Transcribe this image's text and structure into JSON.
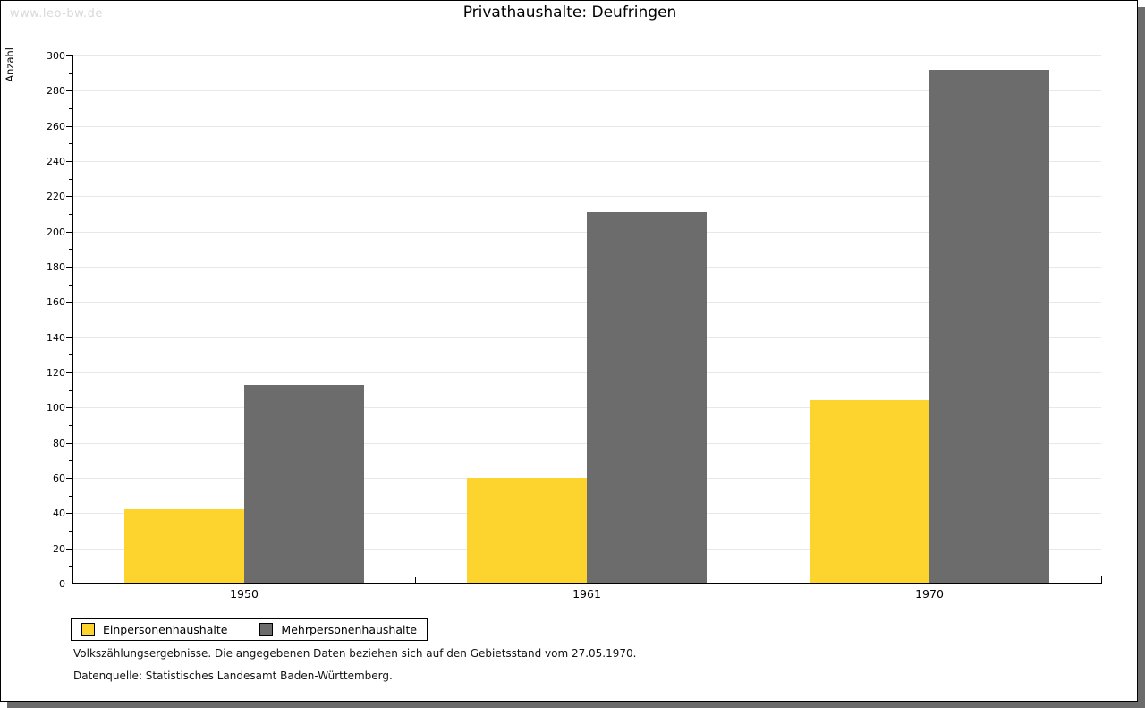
{
  "watermark": "www.leo-bw.de",
  "title": "Privathaushalte: Deufringen",
  "chart_data": {
    "type": "bar",
    "title": "Privathaushalte: Deufringen",
    "categories": [
      "1950",
      "1961",
      "1970"
    ],
    "series": [
      {
        "name": "Einpersonenhaushalte",
        "color": "#fcd42d",
        "values": [
          42,
          60,
          104
        ]
      },
      {
        "name": "Mehrpersonenhaushalte",
        "color": "#6c6c6c",
        "values": [
          113,
          211,
          292
        ]
      }
    ],
    "xlabel": "",
    "ylabel": "Anzahl",
    "ylim": [
      0,
      300
    ],
    "ytick_step": 20,
    "ytick_minor_step": 10,
    "grid": true,
    "legend_position": "bottom-left"
  },
  "footer": {
    "line1": "Volkszählungsergebnisse. Die angegebenen Daten beziehen sich auf den Gebietsstand vom 27.05.1970.",
    "line2": "Datenquelle: Statistisches Landesamt Baden-Württemberg."
  },
  "colors": {
    "series1": "#fcd42d",
    "series2": "#6c6c6c",
    "gridline": "#e8e8e8",
    "shadow": "#6c6c6c",
    "watermark": "#d9d9d9"
  }
}
